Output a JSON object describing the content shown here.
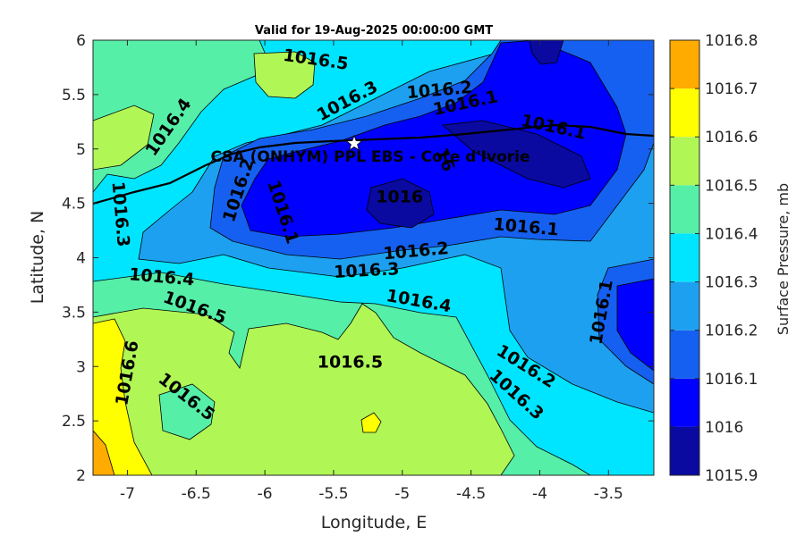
{
  "chart_data": {
    "type": "heatmap",
    "title": "Valid for 19-Aug-2025 00:00:00 GMT",
    "xlabel": "Longitude, E",
    "ylabel": "Latitude, N",
    "xlim": [
      -7.25,
      -3.17
    ],
    "ylim": [
      2,
      6
    ],
    "x_ticks": [
      -7,
      -6.5,
      -6,
      -5.5,
      -5,
      -4.5,
      -4,
      -3.5
    ],
    "y_ticks": [
      2,
      2.5,
      3,
      3.5,
      4,
      4.5,
      5,
      5.5,
      6
    ],
    "site": {
      "label": "CSA (ONHYM) PPL EBS  - Cote d'Ivorie",
      "lon": -5.35,
      "lat": 5.05
    },
    "colorbar": {
      "label": "Surface Pressure, mb",
      "levels": [
        1015.9,
        1016,
        1016.1,
        1016.2,
        1016.3,
        1016.4,
        1016.5,
        1016.6,
        1016.7,
        1016.8
      ],
      "tick_labels": [
        "1015.9",
        "1016",
        "1016.1",
        "1016.2",
        "1016.3",
        "1016.4",
        "1016.5",
        "1016.6",
        "1016.7",
        "1016.8"
      ],
      "colors": [
        "#0a0aa0",
        "#0000ff",
        "#1560f0",
        "#1ea0f0",
        "#00e5ff",
        "#55efa8",
        "#b0f655",
        "#ffff00",
        "#ffab00",
        "#ff5a00"
      ]
    },
    "contour_labels": [
      {
        "text": "1016.5",
        "lon": -5.63,
        "lat": 5.82,
        "angle": 8
      },
      {
        "text": "1016.3",
        "lon": -5.4,
        "lat": 5.44,
        "angle": -28
      },
      {
        "text": "1016.2",
        "lon": -4.73,
        "lat": 5.54,
        "angle": -5
      },
      {
        "text": "1016.1",
        "lon": -4.54,
        "lat": 5.42,
        "angle": -12
      },
      {
        "text": "1016.1",
        "lon": -3.9,
        "lat": 5.2,
        "angle": 12
      },
      {
        "text": "1016.4",
        "lon": -6.7,
        "lat": 5.2,
        "angle": -55
      },
      {
        "text": "1016.2",
        "lon": -6.19,
        "lat": 4.62,
        "angle": -72
      },
      {
        "text": "1016.3",
        "lon": -7.05,
        "lat": 4.4,
        "angle": 85
      },
      {
        "text": "1016.1",
        "lon": -5.87,
        "lat": 4.42,
        "angle": 72
      },
      {
        "text": "1016",
        "lon": -5.02,
        "lat": 4.56,
        "angle": 0
      },
      {
        "text": "16",
        "lon": -4.69,
        "lat": 4.9,
        "angle": 68
      },
      {
        "text": "1016.1",
        "lon": -4.1,
        "lat": 4.28,
        "angle": 5
      },
      {
        "text": "1016.2",
        "lon": -4.9,
        "lat": 4.06,
        "angle": -5
      },
      {
        "text": "1016.3",
        "lon": -5.26,
        "lat": 3.88,
        "angle": -3
      },
      {
        "text": "1016.4",
        "lon": -6.75,
        "lat": 3.82,
        "angle": 5
      },
      {
        "text": "1016.4",
        "lon": -4.88,
        "lat": 3.6,
        "angle": 10
      },
      {
        "text": "1016.5",
        "lon": -6.51,
        "lat": 3.54,
        "angle": 20
      },
      {
        "text": "1016.1",
        "lon": -3.55,
        "lat": 3.5,
        "angle": -80
      },
      {
        "text": "1016.5",
        "lon": -5.38,
        "lat": 3.04,
        "angle": 0
      },
      {
        "text": "1016.6",
        "lon": -7.0,
        "lat": 2.94,
        "angle": -80
      },
      {
        "text": "1016.2",
        "lon": -4.1,
        "lat": 3.0,
        "angle": 32
      },
      {
        "text": "1016.3",
        "lon": -4.17,
        "lat": 2.74,
        "angle": 42
      },
      {
        "text": "1016.5",
        "lon": -6.57,
        "lat": 2.72,
        "angle": 38
      }
    ]
  }
}
